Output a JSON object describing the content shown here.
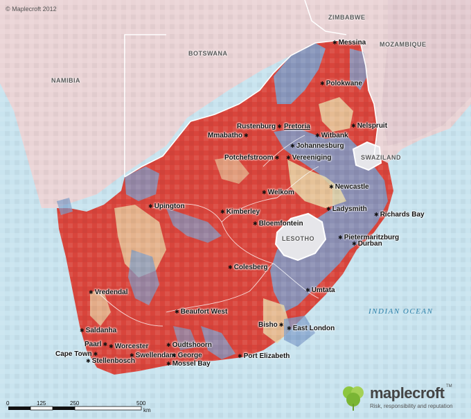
{
  "copyright": "© Maplecroft 2012",
  "countries": [
    "ZIMBABWE",
    "MOZAMBIQUE",
    "BOTSWANA",
    "NAMIBIA",
    "SWAZILAND",
    "LESOTHO"
  ],
  "ocean": "INDIAN OCEAN",
  "cities": [
    "Messina",
    "Polokwane",
    "Rustenburg",
    "Pretoria",
    "Mmabatho",
    "Witbank",
    "Nelspruit",
    "Johannesburg",
    "Potchefstroom",
    "Vereeniging",
    "Newcastle",
    "Welkom",
    "Upington",
    "Ladysmith",
    "Richards Bay",
    "Kimberley",
    "Bloemfontein",
    "Pietermaritzburg",
    "Durban",
    "Colesberg",
    "Vredendal",
    "Umtata",
    "Beaufort West",
    "Bisho",
    "East London",
    "Saldanha",
    "Paarl",
    "Worcester",
    "Oudtshoorn",
    "Cape Town",
    "Swellendam",
    "George",
    "Port Elizabeth",
    "Stellenbosch",
    "Mossel Bay"
  ],
  "scale": {
    "ticks": [
      "0",
      "125",
      "250",
      "500"
    ],
    "unit": "km"
  },
  "logo": {
    "brand": "maplecroft",
    "tm": "TM",
    "tagline": "Risk, responsibility and reputation"
  },
  "colors": {
    "ocean": "#c9e4ef",
    "land_outside": "#ebd6d6",
    "high_risk": "#d9453c",
    "low_risk": "#7e9ec9",
    "mid_risk": "#e8d8a8",
    "logo_green": "#8cc63f"
  }
}
